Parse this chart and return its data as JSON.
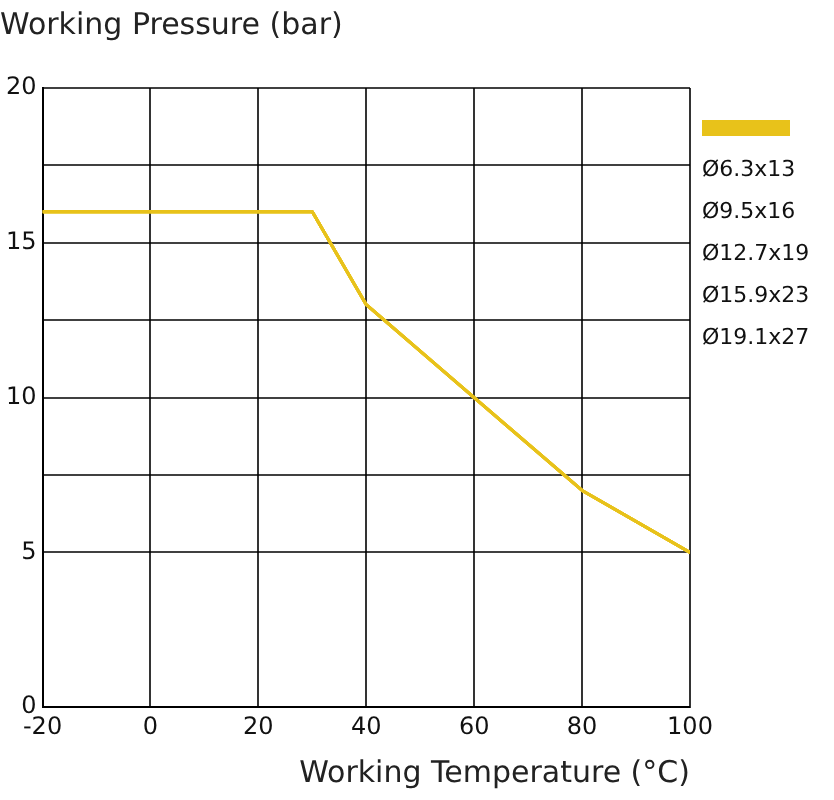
{
  "chart_data": {
    "type": "line",
    "title": "Working Pressure (bar)",
    "xlabel": "Working Temperature (°C)",
    "x": [
      -20,
      30,
      40,
      60,
      80,
      100
    ],
    "series": [
      {
        "name": "Ø6.3x13",
        "color": "#e8c21a",
        "values": [
          16,
          16,
          13,
          10,
          7,
          5
        ]
      },
      {
        "name": "Ø9.5x16",
        "color": "#e8c21a",
        "values": [
          16,
          16,
          13,
          10,
          7,
          5
        ]
      },
      {
        "name": "Ø12.7x19",
        "color": "#e8c21a",
        "values": [
          16,
          16,
          13,
          10,
          7,
          5
        ]
      },
      {
        "name": "Ø15.9x23",
        "color": "#e8c21a",
        "values": [
          16,
          16,
          13,
          10,
          7,
          5
        ]
      },
      {
        "name": "Ø19.1x27",
        "color": "#e8c21a",
        "values": [
          16,
          16,
          13,
          10,
          7,
          5
        ]
      }
    ],
    "xlim": [
      -20,
      100
    ],
    "xticks": [
      -20,
      0,
      20,
      40,
      60,
      80,
      100
    ],
    "ylim": [
      0,
      20
    ],
    "yticks": [
      0,
      5,
      {
        "value": 7.5,
        "label": null
      },
      10,
      {
        "value": 12.5,
        "label": null
      },
      15,
      {
        "value": 17.5,
        "label": null
      },
      20
    ],
    "grid": true,
    "legend": "top right",
    "marker": "none",
    "line_style": "solid"
  }
}
